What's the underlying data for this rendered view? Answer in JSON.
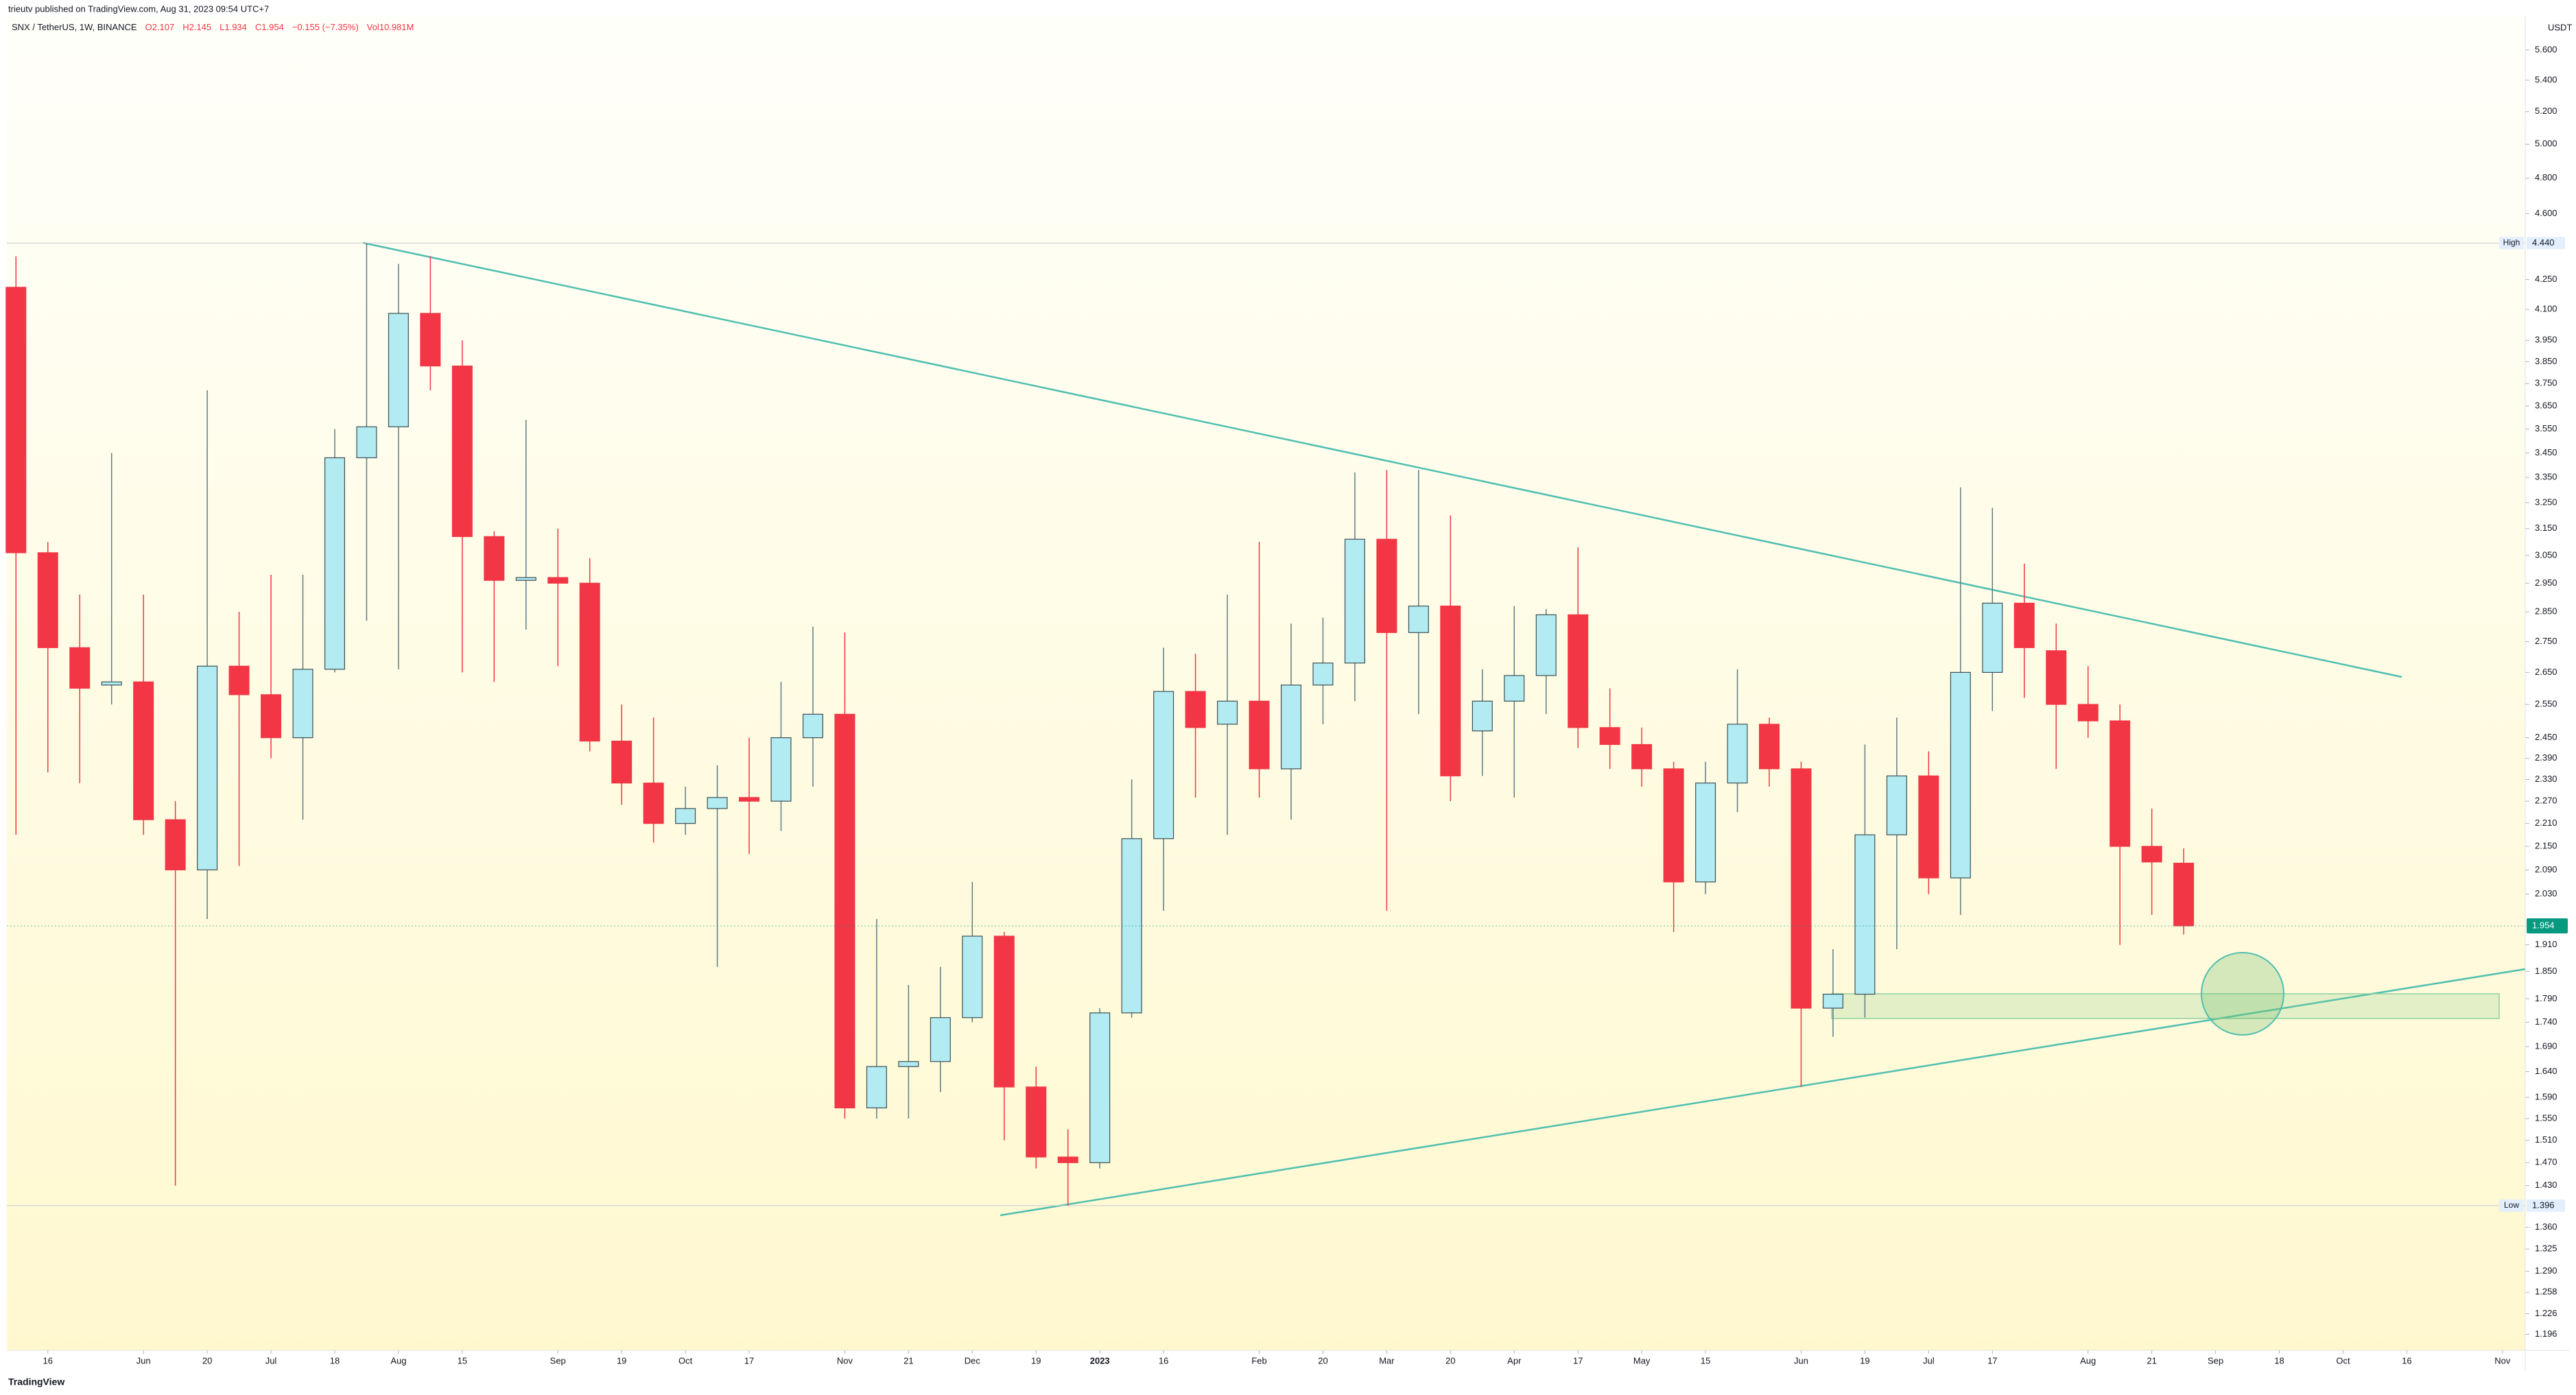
{
  "chart_data": {
    "type": "candlestick",
    "attribution": "trieutv published on TradingView.com, Aug 31, 2023 09:54 UTC+7",
    "legend": {
      "symbol": "SNX / TetherUS, 1W, BINANCE",
      "items": [
        "O2.107",
        "H2.145",
        "L1.934",
        "C1.954",
        "−0.155 (−7.35%)",
        "Vol10.981M"
      ]
    },
    "unit": "USDT",
    "brand": "TradingView",
    "log_scale": true,
    "grid": false,
    "up_color": "#b2ebf2",
    "down_color": "#f23645",
    "x": [
      "2022-05-09",
      "2022-05-16",
      "2022-05-23",
      "2022-05-30",
      "2022-06-06",
      "2022-06-13",
      "2022-06-20",
      "2022-06-27",
      "2022-07-04",
      "2022-07-11",
      "2022-07-18",
      "2022-07-25",
      "2022-08-01",
      "2022-08-08",
      "2022-08-15",
      "2022-08-22",
      "2022-08-29",
      "2022-09-05",
      "2022-09-12",
      "2022-09-19",
      "2022-09-26",
      "2022-10-03",
      "2022-10-10",
      "2022-10-17",
      "2022-10-24",
      "2022-10-31",
      "2022-11-07",
      "2022-11-14",
      "2022-11-21",
      "2022-11-28",
      "2022-12-05",
      "2022-12-12",
      "2022-12-19",
      "2022-12-26",
      "2023-01-02",
      "2023-01-09",
      "2023-01-16",
      "2023-01-23",
      "2023-01-30",
      "2023-02-06",
      "2023-02-13",
      "2023-02-20",
      "2023-02-27",
      "2023-03-06",
      "2023-03-13",
      "2023-03-20",
      "2023-03-27",
      "2023-04-03",
      "2023-04-10",
      "2023-04-17",
      "2023-04-24",
      "2023-05-01",
      "2023-05-08",
      "2023-05-15",
      "2023-05-22",
      "2023-05-29",
      "2023-06-05",
      "2023-06-12",
      "2023-06-19",
      "2023-06-26",
      "2023-07-03",
      "2023-07-10",
      "2023-07-17",
      "2023-07-24",
      "2023-07-31",
      "2023-08-07",
      "2023-08-14",
      "2023-08-21",
      "2023-08-28"
    ],
    "open": [
      4.21,
      3.06,
      2.73,
      2.61,
      2.62,
      2.22,
      2.09,
      2.67,
      2.58,
      2.45,
      2.66,
      3.43,
      3.56,
      4.08,
      3.83,
      3.12,
      2.96,
      2.97,
      2.95,
      2.44,
      2.32,
      2.21,
      2.25,
      2.28,
      2.27,
      2.45,
      2.52,
      1.57,
      1.65,
      1.66,
      1.75,
      1.93,
      1.61,
      1.48,
      1.47,
      1.76,
      2.17,
      2.59,
      2.49,
      2.56,
      2.36,
      2.61,
      2.68,
      3.11,
      2.78,
      2.87,
      2.47,
      2.56,
      2.64,
      2.84,
      2.48,
      2.43,
      2.36,
      2.06,
      2.32,
      2.49,
      2.36,
      1.77,
      1.8,
      2.18,
      2.34,
      2.07,
      2.65,
      2.88,
      2.72,
      2.55,
      2.5,
      2.15,
      2.107
    ],
    "high": [
      4.37,
      3.1,
      2.91,
      3.45,
      2.91,
      2.27,
      3.72,
      2.85,
      2.98,
      2.98,
      3.55,
      4.44,
      4.33,
      4.37,
      3.95,
      3.14,
      3.59,
      3.15,
      3.04,
      2.55,
      2.51,
      2.31,
      2.37,
      2.45,
      2.62,
      2.8,
      2.78,
      1.97,
      1.82,
      1.86,
      2.06,
      1.94,
      1.65,
      1.53,
      1.77,
      2.33,
      2.73,
      2.71,
      2.91,
      3.1,
      2.81,
      2.83,
      3.37,
      3.38,
      3.38,
      3.2,
      2.66,
      2.87,
      2.86,
      3.08,
      2.6,
      2.48,
      2.38,
      2.38,
      2.66,
      2.51,
      2.38,
      1.9,
      2.43,
      2.51,
      2.41,
      3.31,
      3.23,
      3.02,
      2.81,
      2.67,
      2.55,
      2.25,
      2.145
    ],
    "low": [
      2.18,
      2.35,
      2.32,
      2.55,
      2.18,
      1.43,
      1.97,
      2.1,
      2.39,
      2.22,
      2.65,
      2.82,
      2.66,
      3.72,
      2.65,
      2.62,
      2.79,
      2.67,
      2.41,
      2.26,
      2.16,
      2.18,
      1.86,
      2.13,
      2.19,
      2.31,
      1.55,
      1.55,
      1.55,
      1.6,
      1.74,
      1.51,
      1.46,
      1.396,
      1.46,
      1.75,
      1.99,
      2.28,
      2.18,
      2.28,
      2.22,
      2.49,
      2.56,
      1.99,
      2.52,
      2.27,
      2.34,
      2.28,
      2.52,
      2.42,
      2.36,
      2.31,
      1.94,
      2.03,
      2.24,
      2.31,
      1.61,
      1.71,
      1.75,
      1.9,
      2.03,
      1.98,
      2.53,
      2.57,
      2.36,
      2.45,
      1.91,
      1.98,
      1.934
    ],
    "close": [
      3.06,
      2.73,
      2.6,
      2.62,
      2.22,
      2.09,
      2.67,
      2.58,
      2.45,
      2.66,
      3.43,
      3.56,
      4.08,
      3.83,
      3.12,
      2.96,
      2.97,
      2.95,
      2.44,
      2.32,
      2.21,
      2.25,
      2.28,
      2.27,
      2.45,
      2.52,
      1.57,
      1.65,
      1.66,
      1.75,
      1.93,
      1.61,
      1.48,
      1.47,
      1.76,
      2.17,
      2.59,
      2.48,
      2.56,
      2.36,
      2.61,
      2.68,
      3.11,
      2.78,
      2.87,
      2.34,
      2.56,
      2.64,
      2.84,
      2.48,
      2.43,
      2.36,
      2.06,
      2.32,
      2.49,
      2.36,
      1.77,
      1.8,
      2.18,
      2.34,
      2.07,
      2.65,
      2.88,
      2.73,
      2.55,
      2.5,
      2.15,
      2.11,
      1.954
    ],
    "xlim": [
      "2022-05-07",
      "2023-11-11"
    ],
    "xticks": [
      {
        "value": "2022-05-16",
        "label": "16"
      },
      {
        "value": "2022-06-06",
        "label": "Jun"
      },
      {
        "value": "2022-06-20",
        "label": "20"
      },
      {
        "value": "2022-07-04",
        "label": "Jul"
      },
      {
        "value": "2022-07-18",
        "label": "18"
      },
      {
        "value": "2022-08-01",
        "label": "Aug"
      },
      {
        "value": "2022-08-15",
        "label": "15"
      },
      {
        "value": "2022-09-05",
        "label": "Sep"
      },
      {
        "value": "2022-09-19",
        "label": "19"
      },
      {
        "value": "2022-10-03",
        "label": "Oct"
      },
      {
        "value": "2022-10-17",
        "label": "17"
      },
      {
        "value": "2022-11-07",
        "label": "Nov"
      },
      {
        "value": "2022-11-21",
        "label": "21"
      },
      {
        "value": "2022-12-05",
        "label": "Dec"
      },
      {
        "value": "2022-12-19",
        "label": "19"
      },
      {
        "value": "2023-01-02",
        "label": "2023"
      },
      {
        "value": "2023-01-16",
        "label": "16"
      },
      {
        "value": "2023-02-06",
        "label": "Feb"
      },
      {
        "value": "2023-02-20",
        "label": "20"
      },
      {
        "value": "2023-03-06",
        "label": "Mar"
      },
      {
        "value": "2023-03-20",
        "label": "20"
      },
      {
        "value": "2023-04-03",
        "label": "Apr"
      },
      {
        "value": "2023-04-17",
        "label": "17"
      },
      {
        "value": "2023-05-01",
        "label": "May"
      },
      {
        "value": "2023-05-15",
        "label": "15"
      },
      {
        "value": "2023-06-05",
        "label": "Jun"
      },
      {
        "value": "2023-06-19",
        "label": "19"
      },
      {
        "value": "2023-07-03",
        "label": "Jul"
      },
      {
        "value": "2023-07-17",
        "label": "17"
      },
      {
        "value": "2023-08-07",
        "label": "Aug"
      },
      {
        "value": "2023-08-21",
        "label": "21"
      },
      {
        "value": "2023-09-04",
        "label": "Sep"
      },
      {
        "value": "2023-09-18",
        "label": "18"
      },
      {
        "value": "2023-10-02",
        "label": "Oct"
      },
      {
        "value": "2023-10-16",
        "label": "16"
      },
      {
        "value": "2023-11-06",
        "label": "Nov"
      }
    ],
    "ylim": [
      1.173,
      5.83
    ],
    "yticks": [
      {
        "value": 5.6,
        "label": "5.600"
      },
      {
        "value": 5.4,
        "label": "5.400"
      },
      {
        "value": 5.2,
        "label": "5.200"
      },
      {
        "value": 5.0,
        "label": "5.000"
      },
      {
        "value": 4.8,
        "label": "4.800"
      },
      {
        "value": 4.6,
        "label": "4.600"
      },
      {
        "value": 4.25,
        "label": "4.250"
      },
      {
        "value": 4.1,
        "label": "4.100"
      },
      {
        "value": 3.95,
        "label": "3.950"
      },
      {
        "value": 3.85,
        "label": "3.850"
      },
      {
        "value": 3.75,
        "label": "3.750"
      },
      {
        "value": 3.65,
        "label": "3.650"
      },
      {
        "value": 3.55,
        "label": "3.550"
      },
      {
        "value": 3.45,
        "label": "3.450"
      },
      {
        "value": 3.35,
        "label": "3.350"
      },
      {
        "value": 3.25,
        "label": "3.250"
      },
      {
        "value": 3.15,
        "label": "3.150"
      },
      {
        "value": 3.05,
        "label": "3.050"
      },
      {
        "value": 2.95,
        "label": "2.950"
      },
      {
        "value": 2.85,
        "label": "2.850"
      },
      {
        "value": 2.75,
        "label": "2.750"
      },
      {
        "value": 2.65,
        "label": "2.650"
      },
      {
        "value": 2.55,
        "label": "2.550"
      },
      {
        "value": 2.45,
        "label": "2.450"
      },
      {
        "value": 2.39,
        "label": "2.390"
      },
      {
        "value": 2.33,
        "label": "2.330"
      },
      {
        "value": 2.27,
        "label": "2.270"
      },
      {
        "value": 2.21,
        "label": "2.210"
      },
      {
        "value": 2.15,
        "label": "2.150"
      },
      {
        "value": 2.09,
        "label": "2.090"
      },
      {
        "value": 2.03,
        "label": "2.030"
      },
      {
        "value": 1.91,
        "label": "1.910"
      },
      {
        "value": 1.85,
        "label": "1.850"
      },
      {
        "value": 1.79,
        "label": "1.790"
      },
      {
        "value": 1.74,
        "label": "1.740"
      },
      {
        "value": 1.69,
        "label": "1.690"
      },
      {
        "value": 1.64,
        "label": "1.640"
      },
      {
        "value": 1.59,
        "label": "1.590"
      },
      {
        "value": 1.55,
        "label": "1.550"
      },
      {
        "value": 1.51,
        "label": "1.510"
      },
      {
        "value": 1.47,
        "label": "1.470"
      },
      {
        "value": 1.43,
        "label": "1.430"
      },
      {
        "value": 1.36,
        "label": "1.360"
      },
      {
        "value": 1.325,
        "label": "1.325"
      },
      {
        "value": 1.29,
        "label": "1.290"
      },
      {
        "value": 1.258,
        "label": "1.258"
      },
      {
        "value": 1.226,
        "label": "1.226"
      },
      {
        "value": 1.196,
        "label": "1.196"
      }
    ],
    "markers": [
      {
        "name": "High",
        "value": 4.44,
        "label": "4.440"
      },
      {
        "name": "Low",
        "value": 1.396,
        "label": "1.396"
      }
    ],
    "last_price": {
      "value": 1.954,
      "label": "1.954",
      "color": "#089981"
    }
  }
}
